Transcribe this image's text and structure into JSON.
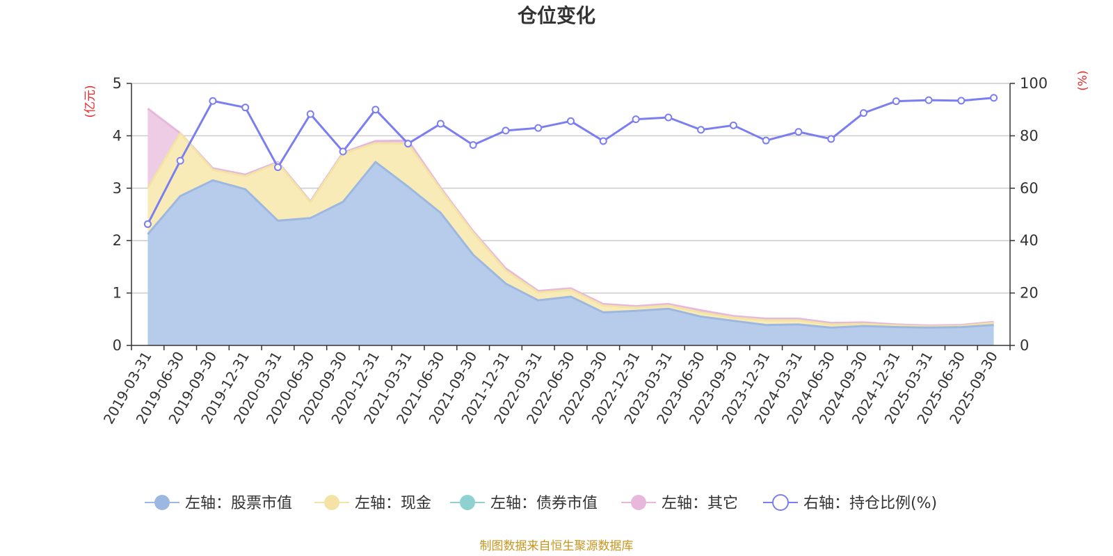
{
  "chart_data": {
    "type": "area",
    "title": "仓位变化",
    "left_axis_unit": "(亿元)",
    "right_axis_unit": "(%)",
    "ylim_left": [
      0,
      5
    ],
    "yticks_left": [
      "0",
      "1",
      "2",
      "3",
      "4",
      "5"
    ],
    "ylim_right": [
      0,
      100
    ],
    "yticks_right": [
      "0",
      "20",
      "40",
      "60",
      "80",
      "100"
    ],
    "categories": [
      "2019-03-31",
      "2019-06-30",
      "2019-09-30",
      "2019-12-31",
      "2020-03-31",
      "2020-06-30",
      "2020-09-30",
      "2020-12-31",
      "2021-03-31",
      "2021-06-30",
      "2021-09-30",
      "2021-12-31",
      "2022-03-31",
      "2022-06-30",
      "2022-09-30",
      "2022-12-31",
      "2023-03-31",
      "2023-06-30",
      "2023-09-30",
      "2023-12-31",
      "2024-03-31",
      "2024-06-30",
      "2024-09-30",
      "2024-12-31",
      "2025-03-31",
      "2025-06-30",
      "2025-09-30"
    ],
    "series": [
      {
        "name": "左轴：股票市值",
        "axis": "left",
        "stack": true,
        "color": "#9db8e0",
        "fill": "#b7cbea",
        "values": [
          2.12,
          2.85,
          3.15,
          2.98,
          2.38,
          2.43,
          2.74,
          3.5,
          3.03,
          2.53,
          1.73,
          1.18,
          0.86,
          0.93,
          0.63,
          0.66,
          0.7,
          0.55,
          0.47,
          0.39,
          0.4,
          0.34,
          0.37,
          0.35,
          0.34,
          0.35,
          0.39
        ]
      },
      {
        "name": "左轴：现金",
        "axis": "left",
        "stack": true,
        "color": "#f5e3a6",
        "fill": "#f8ebb8",
        "values": [
          0.88,
          1.2,
          0.2,
          0.25,
          1.1,
          0.3,
          0.92,
          0.36,
          0.82,
          0.45,
          0.42,
          0.25,
          0.15,
          0.13,
          0.13,
          0.06,
          0.06,
          0.08,
          0.06,
          0.09,
          0.08,
          0.06,
          0.04,
          0.03,
          0.02,
          0.02,
          0.04
        ]
      },
      {
        "name": "左轴：债券市值",
        "axis": "left",
        "stack": true,
        "color": "#8ed1d0",
        "fill": "#b6e3e2",
        "values": [
          0,
          0,
          0,
          0,
          0,
          0,
          0,
          0,
          0,
          0,
          0,
          0,
          0,
          0,
          0,
          0,
          0,
          0,
          0,
          0,
          0,
          0,
          0,
          0,
          0,
          0,
          0
        ]
      },
      {
        "name": "左轴：其它",
        "axis": "left",
        "stack": true,
        "color": "#e7b8dc",
        "fill": "#efcce6",
        "values": [
          1.52,
          0.0,
          0.03,
          0.03,
          0.02,
          0.02,
          0.02,
          0.04,
          0.06,
          0.03,
          0.03,
          0.04,
          0.03,
          0.03,
          0.03,
          0.03,
          0.03,
          0.04,
          0.03,
          0.03,
          0.03,
          0.03,
          0.03,
          0.02,
          0.02,
          0.02,
          0.02
        ]
      },
      {
        "name": "右轴：持仓比例(%)",
        "axis": "right",
        "stack": false,
        "color": "#7b7ef0",
        "values": [
          46.3,
          70.5,
          93.3,
          90.8,
          68.0,
          88.3,
          74.0,
          90.0,
          77.0,
          84.6,
          76.5,
          82.0,
          83.0,
          85.6,
          78.0,
          86.3,
          87.0,
          82.3,
          84.0,
          78.2,
          81.5,
          78.8,
          88.7,
          93.2,
          93.6,
          93.4,
          94.5
        ]
      }
    ],
    "legend": [
      {
        "label": "左轴：股票市值",
        "marker": "filled-circle",
        "color": "#9db8e0"
      },
      {
        "label": "左轴：现金",
        "marker": "filled-circle",
        "color": "#f5e3a6"
      },
      {
        "label": "左轴：债券市值",
        "marker": "filled-circle",
        "color": "#8ed1d0"
      },
      {
        "label": "左轴：其它",
        "marker": "filled-circle",
        "color": "#e7b8dc"
      },
      {
        "label": "右轴：持仓比例(%)",
        "marker": "hollow-circle",
        "color": "#7b7ef0"
      }
    ],
    "grid": true,
    "legend_position": "bottom"
  },
  "source_note": "制图数据来自恒生聚源数据库"
}
